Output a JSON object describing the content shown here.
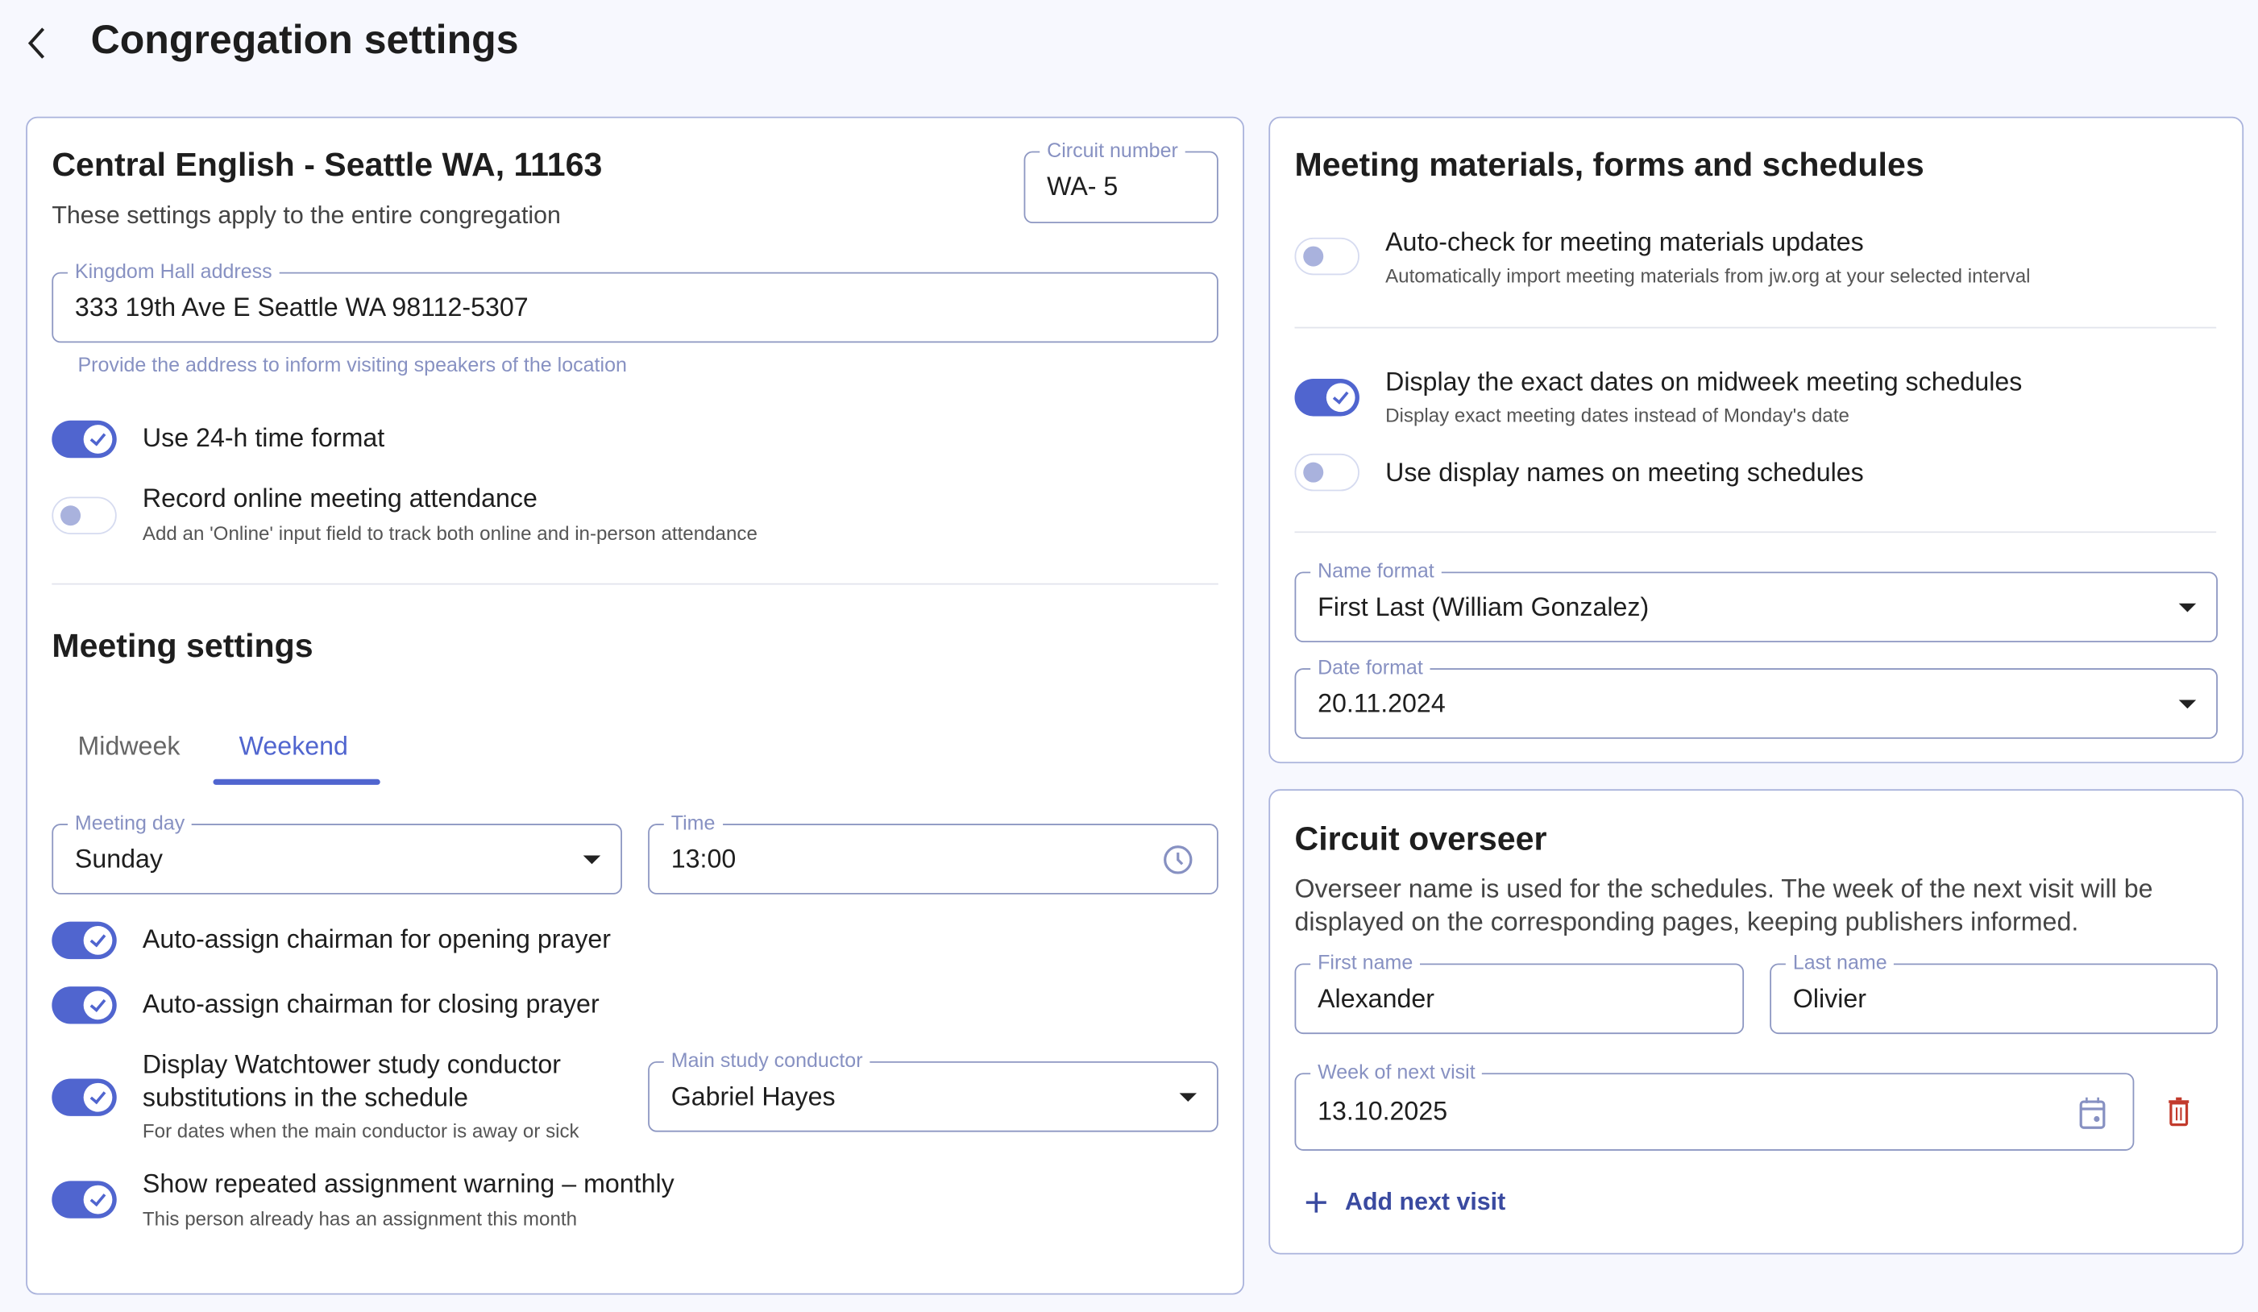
{
  "header": {
    "title": "Congregation settings",
    "back_icon": "chevron-left-icon"
  },
  "colors": {
    "accent": "#5065cf",
    "border": "#8d97c2",
    "label": "#8791c2",
    "danger": "#c23a2c",
    "link": "#3a4aa0",
    "background": "#f7f8fe"
  },
  "congregation": {
    "title": "Central English - Seattle WA, 11163",
    "subtitle": "These settings apply to the entire congregation",
    "circuit": {
      "label": "Circuit number",
      "value": "WA- 5"
    },
    "address": {
      "label": "Kingdom Hall address",
      "value": "333 19th Ave E Seattle WA  98112-5307",
      "helper": "Provide the address to inform visiting speakers of the location"
    },
    "toggles": [
      {
        "label": "Use 24-h time format",
        "on": true
      },
      {
        "label": "Record online meeting attendance",
        "description": "Add an 'Online' input field to track both online and in-person attendance",
        "on": false
      }
    ]
  },
  "meeting": {
    "title": "Meeting settings",
    "tabs": [
      {
        "label": "Midweek",
        "active": false
      },
      {
        "label": "Weekend",
        "active": true
      }
    ],
    "day": {
      "label": "Meeting day",
      "value": "Sunday"
    },
    "time": {
      "label": "Time",
      "value": "13:00"
    },
    "toggles": [
      {
        "label": "Auto-assign chairman for opening prayer",
        "on": true
      },
      {
        "label": "Auto-assign chairman for closing prayer",
        "on": true
      },
      {
        "label": "Display Watchtower study conductor",
        "label2": "substitutions in the schedule",
        "description": "For dates when the main conductor is away or sick",
        "on": true
      },
      {
        "label": "Show repeated assignment warning – monthly",
        "description": "This person already has an assignment this month",
        "on": true
      }
    ],
    "conductor": {
      "label": "Main study conductor",
      "value": "Gabriel Hayes"
    }
  },
  "materials": {
    "title": "Meeting materials, forms and schedules",
    "toggles": [
      {
        "label": "Auto-check for meeting materials updates",
        "description": "Automatically import meeting materials from jw.org at your selected interval",
        "on": false
      },
      {
        "label": "Display the exact dates on midweek meeting schedules",
        "description": "Display exact meeting dates instead of Monday's date",
        "on": true
      },
      {
        "label": "Use display names on meeting schedules",
        "on": false
      }
    ],
    "name_format": {
      "label": "Name format",
      "value": "First Last (William Gonzalez)"
    },
    "date_format": {
      "label": "Date format",
      "value": "20.11.2024"
    }
  },
  "overseer": {
    "title": "Circuit overseer",
    "description1": "Overseer name is used for the schedules. The week of the next visit will be",
    "description2": "displayed on the corresponding pages, keeping publishers informed.",
    "first_name": {
      "label": "First name",
      "value": "Alexander"
    },
    "last_name": {
      "label": "Last name",
      "value": "Olivier"
    },
    "next_visit": {
      "label": "Week of next visit",
      "value": "13.10.2025"
    },
    "add_label": "Add next visit"
  }
}
